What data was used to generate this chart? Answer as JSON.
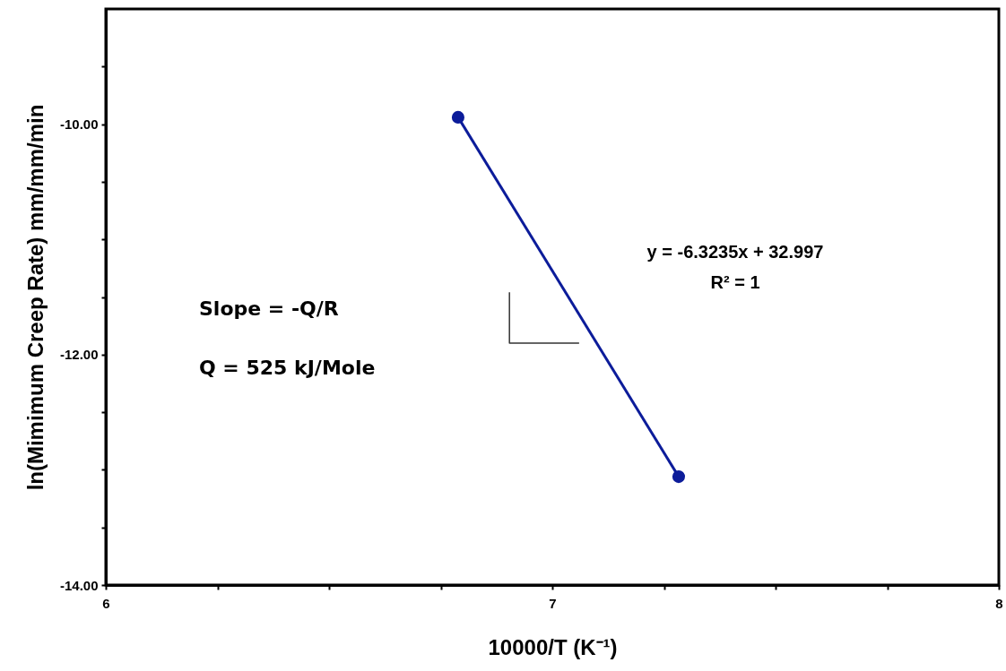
{
  "chart_data": {
    "type": "line",
    "xlabel": "10000/T (K⁻¹)",
    "ylabel": "ln(Mimimum Creep Rate) mm/mm/min",
    "series": [
      {
        "color": "#0c1c9a",
        "marker": "circle",
        "x": [
          6.789,
          7.283
        ],
        "values": [
          -9.94,
          -13.06
        ]
      },
      {
        "color": "#333333",
        "marker": "none",
        "x": [
          6.904,
          6.904,
          7.06
        ],
        "values": [
          -11.46,
          -11.9,
          -11.9
        ]
      }
    ],
    "xlim": [
      6,
      8
    ],
    "xticks": [
      6,
      {
        "value": 6.25,
        "label": null
      },
      {
        "value": 6.5,
        "label": null
      },
      {
        "value": 6.75,
        "label": null
      },
      7,
      {
        "value": 7.25,
        "label": null
      },
      {
        "value": 7.5,
        "label": null
      },
      {
        "value": 7.75,
        "label": null
      },
      8
    ],
    "ylim": [
      -14,
      -9
    ],
    "yticks": [
      {
        "value": -14,
        "label": "-14.00"
      },
      {
        "value": -13.5,
        "label": null
      },
      {
        "value": -13,
        "label": null
      },
      {
        "value": -12.5,
        "label": null
      },
      {
        "value": -12,
        "label": "-12.00"
      },
      {
        "value": -11.5,
        "label": null
      },
      {
        "value": -11,
        "label": null
      },
      {
        "value": -10.5,
        "label": null
      },
      {
        "value": -10,
        "label": "-10.00"
      },
      {
        "value": -9.5,
        "label": null
      }
    ],
    "annotations": [
      "y = -6.3235x + 32.997",
      "R² = 1",
      "Slope = -Q/R",
      "Q = 525 kJ/Mole"
    ],
    "grid": false
  }
}
